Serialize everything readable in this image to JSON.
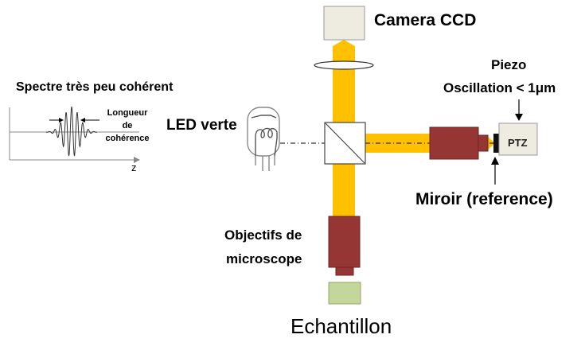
{
  "labels": {
    "camera": "Camera CCD",
    "spectre": "Spectre très peu cohérent",
    "piezo": "Piezo",
    "oscillation": "Oscillation < 1μm",
    "led": "LED verte",
    "miroir": "Miroir (reference)",
    "objectifs_line1": "Objectifs de",
    "objectifs_line2": "microscope",
    "echantillon": "Echantillon",
    "longueur_line1": "Longueur",
    "longueur_line2": "de",
    "longueur_line3": "cohérence",
    "axis_z": "z",
    "ptz": "PTZ"
  },
  "colors": {
    "beam": "#ffc000",
    "objective": "#963634",
    "sample": "#c4d79b",
    "camera": "#eeece1",
    "ptz": "#eeece1"
  }
}
